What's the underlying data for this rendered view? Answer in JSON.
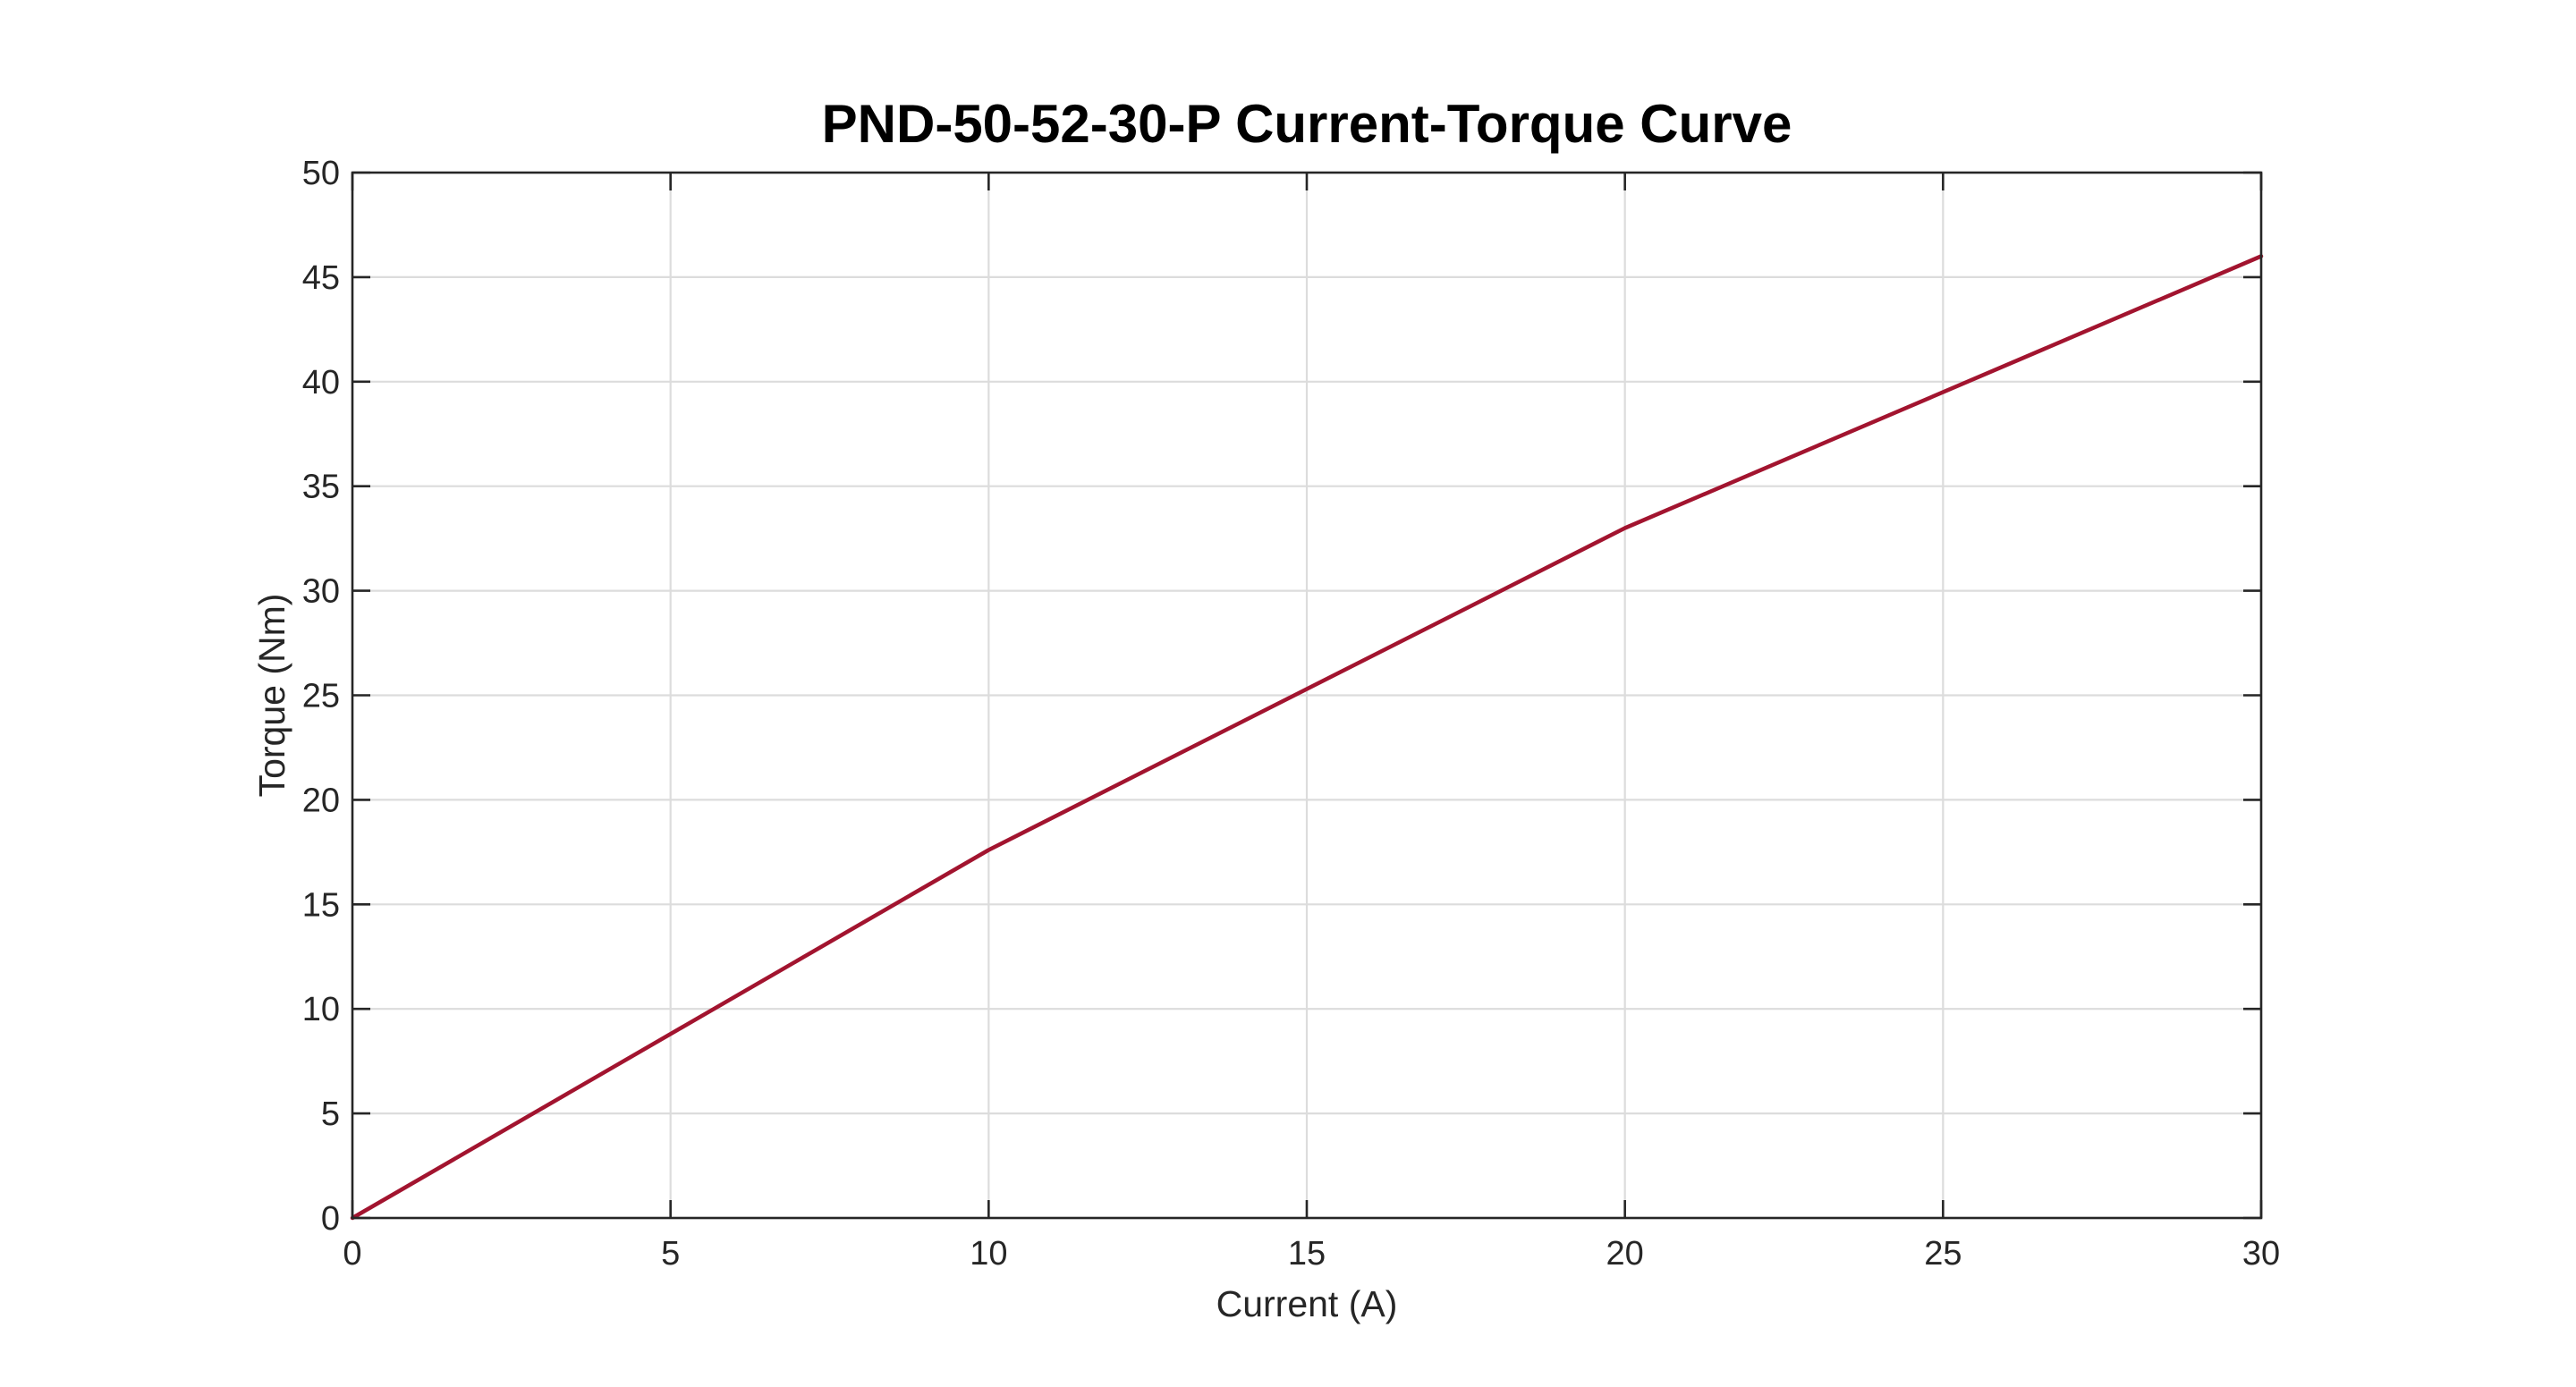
{
  "chart_data": {
    "type": "line",
    "title": "PND-50-52-30-P Current-Torque Curve",
    "xlabel": "Current (A)",
    "ylabel": "Torque (Nm)",
    "xlim": [
      0,
      30
    ],
    "ylim": [
      0,
      50
    ],
    "xticks": [
      0,
      5,
      10,
      15,
      20,
      25,
      30
    ],
    "yticks": [
      0,
      5,
      10,
      15,
      20,
      25,
      30,
      35,
      40,
      45,
      50
    ],
    "xtick_labels": [
      "0",
      "5",
      "10",
      "15",
      "20",
      "25",
      "30"
    ],
    "ytick_labels": [
      "0",
      "5",
      "10",
      "15",
      "20",
      "25",
      "30",
      "35",
      "40",
      "45",
      "50"
    ],
    "grid": true,
    "legend": "none",
    "series": [
      {
        "color": "#A2142F",
        "x": [
          0,
          10,
          20,
          30
        ],
        "y": [
          0,
          17.6,
          33,
          46
        ]
      }
    ]
  }
}
